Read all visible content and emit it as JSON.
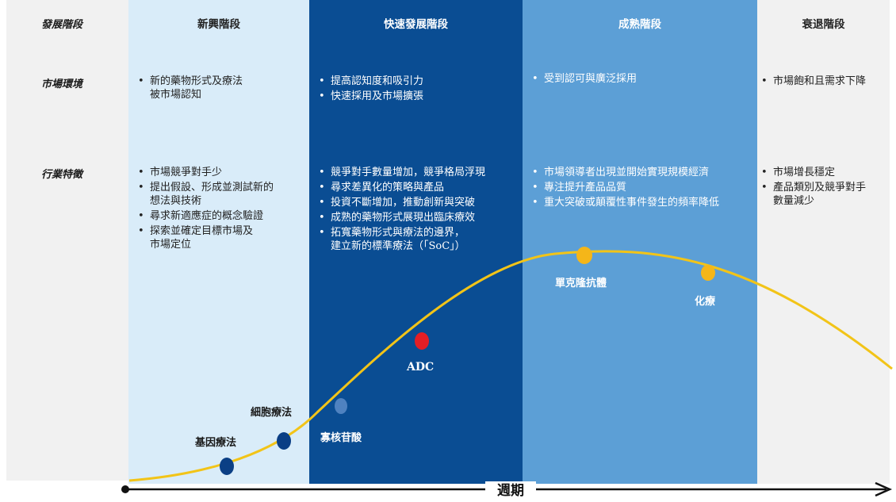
{
  "row_labels": {
    "stage": "發展階段",
    "environment": "市場環境",
    "characteristics": "行業特徵"
  },
  "stages": [
    {
      "title": "新興階段",
      "environment": [
        "新的藥物形式及療法\n被市場認知"
      ],
      "characteristics": [
        "市場競爭對手少",
        "提出假設、形成並測試新的\n想法與技術",
        "尋求新適應症的概念驗證",
        "探索並確定目標市場及\n市場定位"
      ]
    },
    {
      "title": "快速發展階段",
      "environment": [
        "提高認知度和吸引力",
        "快速採用及市場擴張"
      ],
      "characteristics": [
        "競爭對手數量增加，競爭格局浮現",
        "尋求差異化的策略與產品",
        "投資不斷增加，推動創新與突破",
        "成熟的藥物形式展現出臨床療效",
        "拓寬藥物形式與療法的邊界，\n建立新的標準療法（「SoC」）"
      ]
    },
    {
      "title": "成熟階段",
      "environment": [
        "受到認可與廣泛採用"
      ],
      "characteristics": [
        "市場領導者出現並開始實現規模經濟",
        "專注提升產品品質",
        "重大突破或顛覆性事件發生的頻率降低"
      ]
    },
    {
      "title": "衰退階段",
      "environment": [
        "市場飽和且需求下降"
      ],
      "characteristics": [
        "市場增長穩定",
        "產品類別及競爭對手\n數量減少"
      ]
    }
  ],
  "markers": [
    {
      "label": "基因療法",
      "color": "#0b3f85"
    },
    {
      "label": "細胞療法",
      "color": "#0b3f85"
    },
    {
      "label": "寡核苷酸",
      "color": "#4f82c0"
    },
    {
      "label": "ADC",
      "color": "#e41e26"
    },
    {
      "label": "單克隆抗體",
      "color": "#f5b619"
    },
    {
      "label": "化療",
      "color": "#f5b619"
    }
  ],
  "axis": {
    "label": "週期"
  },
  "colors": {
    "curve": "#f2c418",
    "stage1_bg": "#d9ecf9",
    "stage2_bg": "#0a4d93",
    "stage3_bg": "#5c9fd6",
    "stage4_bg": "#f1f1f1"
  }
}
